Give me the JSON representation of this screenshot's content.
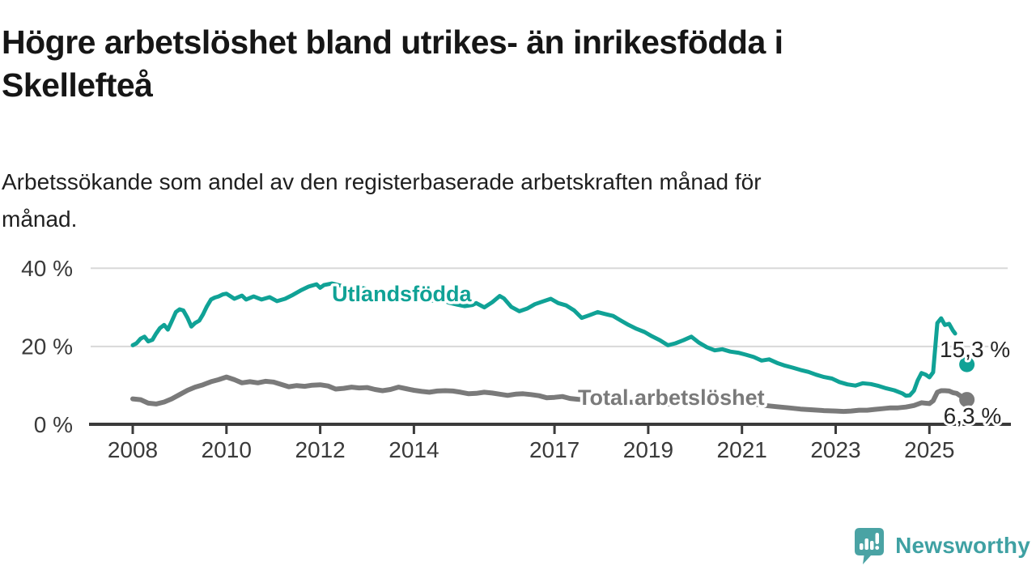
{
  "header": {
    "title": "Högre arbetslöshet bland utrikes- än inrikesfödda i\nSkellefteå",
    "subtitle": "Arbetssökande som andel av den registerbaserade arbetskraften månad för\nmånad."
  },
  "colors": {
    "teal_series": "#10a296",
    "gray_series": "#7a7a7a",
    "axis_text": "#3a3a3a",
    "axis_line": "#3b3b3b",
    "gridline": "#d8d8d8",
    "annotation_text": "#262626",
    "logo_teal": "#4aa3a4"
  },
  "chart_data": {
    "type": "line",
    "unit": "%",
    "grid": "horizontal-only",
    "x_ticks": [
      2008,
      2010,
      2012,
      2014,
      2017,
      2019,
      2021,
      2023,
      2025
    ],
    "y_ticks": [
      {
        "value": 0,
        "label": "0 %"
      },
      {
        "value": 20,
        "label": "20 %"
      },
      {
        "value": 40,
        "label": "40 %"
      }
    ],
    "xlim": [
      2007.9,
      2026.7
    ],
    "ylim": [
      0,
      42
    ],
    "series": [
      {
        "name": "Utlandsfödda",
        "color": "#10a296",
        "stroke_width": 5,
        "label_at": [
          2012.25,
          31.5
        ],
        "points": [
          [
            2008.0,
            20.2
          ],
          [
            2008.08,
            20.7
          ],
          [
            2008.17,
            21.9
          ],
          [
            2008.25,
            22.4
          ],
          [
            2008.33,
            21.2
          ],
          [
            2008.42,
            21.6
          ],
          [
            2008.5,
            23.2
          ],
          [
            2008.58,
            24.6
          ],
          [
            2008.67,
            25.4
          ],
          [
            2008.75,
            24.2
          ],
          [
            2008.83,
            26.3
          ],
          [
            2008.92,
            28.7
          ],
          [
            2009.0,
            29.4
          ],
          [
            2009.08,
            29.1
          ],
          [
            2009.17,
            27.2
          ],
          [
            2009.25,
            25.0
          ],
          [
            2009.33,
            25.9
          ],
          [
            2009.42,
            26.5
          ],
          [
            2009.5,
            28.1
          ],
          [
            2009.58,
            30.1
          ],
          [
            2009.67,
            31.9
          ],
          [
            2009.75,
            32.4
          ],
          [
            2009.83,
            32.7
          ],
          [
            2009.92,
            33.2
          ],
          [
            2010.0,
            33.4
          ],
          [
            2010.17,
            32.1
          ],
          [
            2010.33,
            32.9
          ],
          [
            2010.42,
            31.9
          ],
          [
            2010.58,
            32.7
          ],
          [
            2010.75,
            31.9
          ],
          [
            2010.92,
            32.5
          ],
          [
            2011.08,
            31.5
          ],
          [
            2011.25,
            32.1
          ],
          [
            2011.42,
            33.1
          ],
          [
            2011.58,
            34.2
          ],
          [
            2011.75,
            35.2
          ],
          [
            2011.92,
            35.8
          ],
          [
            2012.0,
            34.9
          ],
          [
            2012.08,
            35.6
          ],
          [
            2012.25,
            36.0
          ],
          [
            2012.42,
            35.5
          ],
          [
            2012.58,
            35.0
          ],
          [
            2012.75,
            34.5
          ],
          [
            2012.92,
            34.8
          ],
          [
            2013.08,
            34.2
          ],
          [
            2013.25,
            33.7
          ],
          [
            2013.42,
            33.9
          ],
          [
            2013.58,
            33.2
          ],
          [
            2013.75,
            32.9
          ],
          [
            2013.92,
            33.1
          ],
          [
            2014.08,
            32.5
          ],
          [
            2014.25,
            32.0
          ],
          [
            2014.42,
            31.6
          ],
          [
            2014.58,
            31.9
          ],
          [
            2014.75,
            31.1
          ],
          [
            2014.92,
            30.6
          ],
          [
            2015.08,
            30.2
          ],
          [
            2015.25,
            30.5
          ],
          [
            2015.33,
            31.0
          ],
          [
            2015.5,
            29.9
          ],
          [
            2015.67,
            31.2
          ],
          [
            2015.83,
            32.8
          ],
          [
            2015.92,
            32.2
          ],
          [
            2016.08,
            30.0
          ],
          [
            2016.25,
            28.9
          ],
          [
            2016.42,
            29.6
          ],
          [
            2016.58,
            30.7
          ],
          [
            2016.75,
            31.4
          ],
          [
            2016.92,
            32.1
          ],
          [
            2017.08,
            31.0
          ],
          [
            2017.25,
            30.4
          ],
          [
            2017.42,
            29.1
          ],
          [
            2017.58,
            27.2
          ],
          [
            2017.75,
            27.9
          ],
          [
            2017.92,
            28.7
          ],
          [
            2018.08,
            28.2
          ],
          [
            2018.25,
            27.7
          ],
          [
            2018.42,
            26.5
          ],
          [
            2018.58,
            25.4
          ],
          [
            2018.75,
            24.4
          ],
          [
            2018.92,
            23.6
          ],
          [
            2019.08,
            22.5
          ],
          [
            2019.25,
            21.5
          ],
          [
            2019.42,
            20.2
          ],
          [
            2019.58,
            20.7
          ],
          [
            2019.75,
            21.5
          ],
          [
            2019.92,
            22.4
          ],
          [
            2020.08,
            20.9
          ],
          [
            2020.25,
            19.7
          ],
          [
            2020.42,
            18.9
          ],
          [
            2020.58,
            19.2
          ],
          [
            2020.75,
            18.6
          ],
          [
            2020.92,
            18.3
          ],
          [
            2021.08,
            17.8
          ],
          [
            2021.25,
            17.2
          ],
          [
            2021.42,
            16.3
          ],
          [
            2021.58,
            16.6
          ],
          [
            2021.75,
            15.7
          ],
          [
            2021.92,
            15.0
          ],
          [
            2022.08,
            14.5
          ],
          [
            2022.25,
            13.9
          ],
          [
            2022.42,
            13.4
          ],
          [
            2022.58,
            12.7
          ],
          [
            2022.75,
            12.1
          ],
          [
            2022.92,
            11.7
          ],
          [
            2023.08,
            10.8
          ],
          [
            2023.25,
            10.2
          ],
          [
            2023.42,
            9.9
          ],
          [
            2023.58,
            10.5
          ],
          [
            2023.75,
            10.3
          ],
          [
            2023.92,
            9.8
          ],
          [
            2024.08,
            9.2
          ],
          [
            2024.25,
            8.7
          ],
          [
            2024.42,
            7.9
          ],
          [
            2024.5,
            7.3
          ],
          [
            2024.58,
            7.4
          ],
          [
            2024.67,
            8.6
          ],
          [
            2024.75,
            11.2
          ],
          [
            2024.83,
            13.1
          ],
          [
            2024.92,
            12.7
          ],
          [
            2025.0,
            12.0
          ],
          [
            2025.08,
            13.3
          ],
          [
            2025.17,
            25.9
          ],
          [
            2025.25,
            27.1
          ],
          [
            2025.33,
            25.4
          ],
          [
            2025.42,
            25.7
          ],
          [
            2025.5,
            24.0
          ],
          [
            2025.55,
            23.2
          ]
        ],
        "latest_dot": {
          "x": 2025.8,
          "y": 15.3,
          "label": "15,3 %",
          "label_at": [
            2025.22,
            17.2
          ]
        }
      },
      {
        "name": "Total arbetslöshet",
        "color": "#7a7a7a",
        "stroke_width": 6,
        "label_at": [
          2017.5,
          5.0
        ],
        "points": [
          [
            2008.0,
            6.5
          ],
          [
            2008.17,
            6.3
          ],
          [
            2008.33,
            5.4
          ],
          [
            2008.5,
            5.2
          ],
          [
            2008.67,
            5.7
          ],
          [
            2008.83,
            6.5
          ],
          [
            2009.0,
            7.6
          ],
          [
            2009.17,
            8.7
          ],
          [
            2009.33,
            9.5
          ],
          [
            2009.5,
            10.1
          ],
          [
            2009.67,
            10.9
          ],
          [
            2009.83,
            11.4
          ],
          [
            2010.0,
            12.1
          ],
          [
            2010.17,
            11.4
          ],
          [
            2010.33,
            10.6
          ],
          [
            2010.5,
            10.9
          ],
          [
            2010.67,
            10.6
          ],
          [
            2010.83,
            11.0
          ],
          [
            2011.0,
            10.8
          ],
          [
            2011.17,
            10.2
          ],
          [
            2011.33,
            9.6
          ],
          [
            2011.5,
            9.9
          ],
          [
            2011.67,
            9.7
          ],
          [
            2011.83,
            10.0
          ],
          [
            2012.0,
            10.1
          ],
          [
            2012.17,
            9.8
          ],
          [
            2012.33,
            9.0
          ],
          [
            2012.5,
            9.2
          ],
          [
            2012.67,
            9.5
          ],
          [
            2012.83,
            9.3
          ],
          [
            2013.0,
            9.4
          ],
          [
            2013.17,
            8.9
          ],
          [
            2013.33,
            8.6
          ],
          [
            2013.5,
            8.9
          ],
          [
            2013.67,
            9.5
          ],
          [
            2013.83,
            9.1
          ],
          [
            2014.0,
            8.7
          ],
          [
            2014.17,
            8.4
          ],
          [
            2014.33,
            8.2
          ],
          [
            2014.5,
            8.5
          ],
          [
            2014.67,
            8.6
          ],
          [
            2014.83,
            8.5
          ],
          [
            2015.0,
            8.2
          ],
          [
            2015.17,
            7.8
          ],
          [
            2015.33,
            7.9
          ],
          [
            2015.5,
            8.2
          ],
          [
            2015.67,
            8.0
          ],
          [
            2015.83,
            7.7
          ],
          [
            2016.0,
            7.4
          ],
          [
            2016.17,
            7.7
          ],
          [
            2016.33,
            7.8
          ],
          [
            2016.5,
            7.6
          ],
          [
            2016.67,
            7.3
          ],
          [
            2016.83,
            6.8
          ],
          [
            2017.0,
            6.9
          ],
          [
            2017.17,
            7.1
          ],
          [
            2017.33,
            6.6
          ],
          [
            2017.5,
            6.4
          ],
          [
            2017.67,
            6.3
          ],
          [
            2017.83,
            6.2
          ],
          [
            2018.0,
            6.1
          ],
          [
            2018.25,
            5.9
          ],
          [
            2018.5,
            5.7
          ],
          [
            2018.75,
            5.6
          ],
          [
            2019.0,
            5.4
          ],
          [
            2019.25,
            5.3
          ],
          [
            2019.5,
            5.2
          ],
          [
            2019.75,
            5.4
          ],
          [
            2020.0,
            5.8
          ],
          [
            2020.25,
            6.4
          ],
          [
            2020.5,
            6.2
          ],
          [
            2020.75,
            6.0
          ],
          [
            2021.0,
            5.6
          ],
          [
            2021.25,
            5.2
          ],
          [
            2021.5,
            4.8
          ],
          [
            2021.75,
            4.5
          ],
          [
            2022.0,
            4.2
          ],
          [
            2022.25,
            3.9
          ],
          [
            2022.5,
            3.7
          ],
          [
            2022.75,
            3.5
          ],
          [
            2023.0,
            3.4
          ],
          [
            2023.17,
            3.3
          ],
          [
            2023.33,
            3.4
          ],
          [
            2023.5,
            3.6
          ],
          [
            2023.67,
            3.6
          ],
          [
            2023.83,
            3.8
          ],
          [
            2024.0,
            4.0
          ],
          [
            2024.17,
            4.2
          ],
          [
            2024.33,
            4.2
          ],
          [
            2024.5,
            4.4
          ],
          [
            2024.67,
            4.8
          ],
          [
            2024.83,
            5.5
          ],
          [
            2025.0,
            5.3
          ],
          [
            2025.08,
            6.0
          ],
          [
            2025.17,
            8.2
          ],
          [
            2025.25,
            8.6
          ],
          [
            2025.33,
            8.6
          ],
          [
            2025.42,
            8.5
          ],
          [
            2025.5,
            8.1
          ],
          [
            2025.58,
            7.9
          ],
          [
            2025.67,
            7.2
          ]
        ],
        "latest_dot": {
          "x": 2025.8,
          "y": 6.3,
          "label": "6,3 %",
          "label_at": [
            2025.3,
            0.2
          ]
        }
      }
    ]
  },
  "logo": {
    "text": "Newsworthy"
  }
}
